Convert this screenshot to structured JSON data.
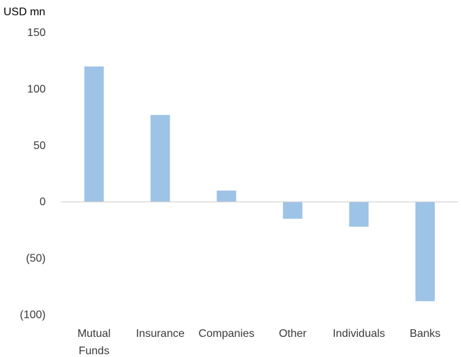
{
  "chart_data": {
    "type": "bar",
    "unit_label": "USD mn",
    "categories": [
      [
        "Mutual",
        "Funds"
      ],
      [
        "Insurance"
      ],
      [
        "Companies"
      ],
      [
        "Other"
      ],
      [
        "Individuals"
      ],
      [
        "Banks"
      ]
    ],
    "values": [
      120,
      77,
      10,
      -15,
      -22,
      -88
    ],
    "ylim": [
      -100,
      150
    ],
    "yticks": [
      {
        "value": 150,
        "label": "150"
      },
      {
        "value": 100,
        "label": "100"
      },
      {
        "value": 50,
        "label": "50"
      },
      {
        "value": 0,
        "label": "0"
      },
      {
        "value": -50,
        "label": "(50)"
      },
      {
        "value": -100,
        "label": "(100)"
      }
    ],
    "grid": false,
    "legend": "none",
    "colors": {
      "bar": "#9DC3E6",
      "axis": "#d0d0d0"
    }
  }
}
